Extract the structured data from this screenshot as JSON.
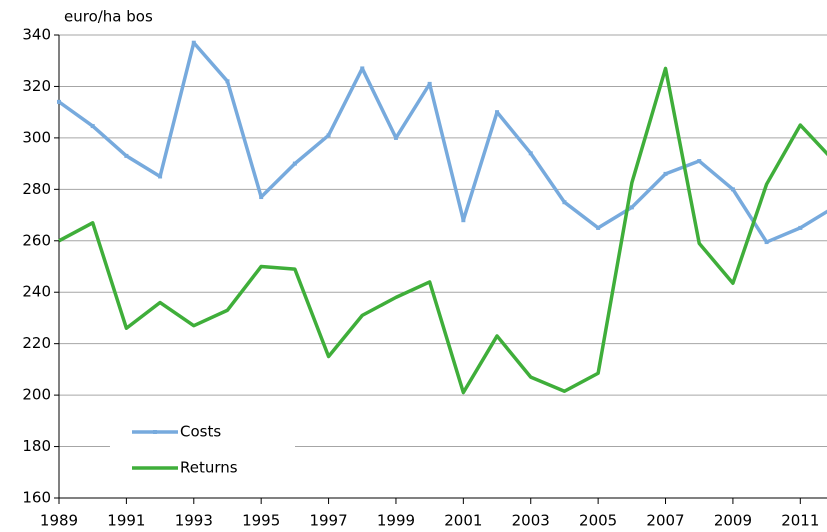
{
  "chart_data": {
    "type": "line",
    "y_label": "euro/ha bos",
    "x": [
      1989,
      1990,
      1991,
      1992,
      1993,
      1994,
      1995,
      1996,
      1997,
      1998,
      1999,
      2000,
      2001,
      2002,
      2003,
      2004,
      2005,
      2006,
      2007,
      2008,
      2009,
      2010,
      2011,
      2012
    ],
    "series": [
      {
        "name": "Costs",
        "color": "#77aadd",
        "marker": true,
        "values": [
          314,
          304.6,
          293,
          285,
          337,
          322,
          277,
          290,
          301,
          327,
          300,
          321,
          268,
          310,
          294,
          275,
          265,
          273,
          286,
          291,
          280,
          259.5,
          265,
          273
        ]
      },
      {
        "name": "Returns",
        "color": "#3fae3a",
        "marker": false,
        "values": [
          260,
          267,
          226,
          236,
          227,
          233,
          250,
          249,
          215,
          231,
          238,
          244,
          201,
          223,
          207,
          201.5,
          208.5,
          282.5,
          327,
          259,
          243.5,
          282,
          305,
          291
        ]
      }
    ],
    "xlim": [
      1989,
      2012
    ],
    "xticks": [
      1989,
      1991,
      1993,
      1995,
      1997,
      1999,
      2001,
      2003,
      2005,
      2007,
      2009,
      2011
    ],
    "ylim": [
      160,
      340
    ],
    "yticks": [
      160,
      180,
      200,
      220,
      240,
      260,
      280,
      300,
      320,
      340
    ],
    "grid": true,
    "legend": "lower left"
  }
}
